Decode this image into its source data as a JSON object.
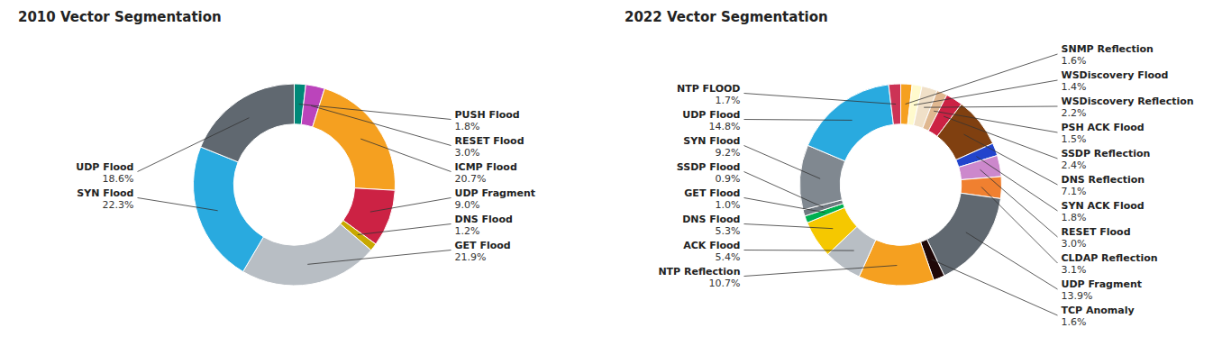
{
  "chart_data": [
    {
      "type": "donut",
      "title": "2010 Vector Segmentation",
      "categories": [
        "PUSH Flood",
        "RESET Flood",
        "ICMP Flood",
        "UDP Fragment",
        "DNS Flood",
        "GET Flood",
        "SYN Flood",
        "UDP Flood"
      ],
      "values": [
        1.8,
        3.0,
        20.7,
        9.0,
        1.2,
        21.9,
        22.3,
        18.6
      ],
      "value_labels": [
        "1.8%",
        "3.0%",
        "20.7%",
        "9.0%",
        "1.2%",
        "21.9%",
        "22.3%",
        "18.6%"
      ],
      "colors": [
        "#008878",
        "#bb44bb",
        "#f5a020",
        "#cc2244",
        "#c8a800",
        "#b8bec4",
        "#29aadf",
        "#606870"
      ],
      "data_labels": true
    },
    {
      "type": "donut",
      "title": "2022 Vector Segmentation",
      "categories": [
        "SNMP Reflection",
        "WSDiscovery Flood",
        "WSDiscovery Reflection",
        "PSH ACK Flood",
        "SSDP Reflection",
        "DNS Reflection",
        "SYN ACK Flood",
        "RESET Flood",
        "CLDAP Reflection",
        "UDP Fragment",
        "TCP Anomaly",
        "NTP Reflection",
        "ACK Flood",
        "DNS Flood",
        "GET Flood",
        "SSDP Flood",
        "SYN Flood",
        "UDP Flood",
        "NTP FLOOD"
      ],
      "values": [
        1.6,
        1.4,
        2.2,
        1.5,
        2.4,
        7.1,
        1.8,
        3.0,
        3.1,
        13.9,
        1.6,
        10.7,
        5.4,
        5.3,
        1.0,
        0.9,
        9.2,
        14.8,
        1.7
      ],
      "value_labels": [
        "1.6%",
        "1.4%",
        "2.2%",
        "1.5%",
        "2.4%",
        "7.1%",
        "1.8%",
        "3.0%",
        "3.1%",
        "13.9%",
        "1.6%",
        "10.7%",
        "5.4%",
        "5.3%",
        "1.0%",
        "0.9%",
        "9.2%",
        "14.8%",
        "1.7%"
      ],
      "colors": [
        "#f5a020",
        "#fffacd",
        "#f0e0c8",
        "#e0b890",
        "#cc2244",
        "#804010",
        "#2244cc",
        "#cc88cc",
        "#f08030",
        "#606870",
        "#200808",
        "#f5a020",
        "#b8bec4",
        "#f5c800",
        "#00b050",
        "#707880",
        "#808890",
        "#29aadf",
        "#cc3355"
      ],
      "data_labels": true
    }
  ]
}
